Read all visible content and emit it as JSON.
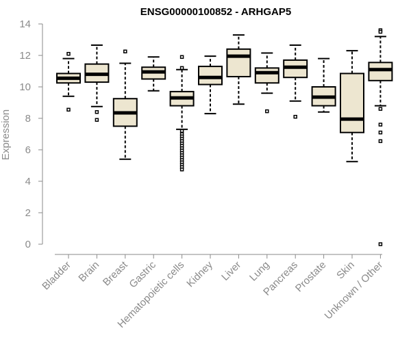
{
  "colors": {
    "box_fill": "#ede6d0",
    "box_stroke": "#000000",
    "axis": "#8a8a8a",
    "title": "#000000"
  },
  "chart_data": {
    "type": "boxplot",
    "title": "ENSG00000100852 - ARHGAP5",
    "xlabel": "",
    "ylabel": "Expression",
    "ylim": [
      0,
      14
    ],
    "yticks": [
      0,
      2,
      4,
      6,
      8,
      10,
      12,
      14
    ],
    "grid": false,
    "categories": [
      "Bladder",
      "Brain",
      "Breast",
      "Gastric",
      "Hematopoietic cells",
      "Kidney",
      "Liver",
      "Lung",
      "Pancreas",
      "Prostate",
      "Skin",
      "Unknown / Other"
    ],
    "boxes": [
      {
        "category": "Bladder",
        "whisker_low": 9.4,
        "q1": 10.25,
        "median": 10.55,
        "q3": 10.85,
        "whisker_high": 11.8,
        "outliers": [
          12.1,
          8.55
        ]
      },
      {
        "category": "Brain",
        "whisker_low": 8.75,
        "q1": 10.3,
        "median": 10.8,
        "q3": 11.45,
        "whisker_high": 12.65,
        "outliers": [
          8.4,
          7.9
        ]
      },
      {
        "category": "Breast",
        "whisker_low": 5.4,
        "q1": 7.5,
        "median": 8.35,
        "q3": 9.25,
        "whisker_high": 11.5,
        "outliers": [
          12.25
        ]
      },
      {
        "category": "Gastric",
        "whisker_low": 9.75,
        "q1": 10.5,
        "median": 10.95,
        "q3": 11.25,
        "whisker_high": 11.9,
        "outliers": []
      },
      {
        "category": "Hematopoietic cells",
        "whisker_low": 7.3,
        "q1": 8.8,
        "median": 9.3,
        "q3": 9.7,
        "whisker_high": 11.1,
        "outliers": [
          11.9,
          11.2,
          7.2,
          7.0,
          6.85,
          6.7,
          6.55,
          6.4,
          6.25,
          6.1,
          5.95,
          5.8,
          5.65,
          5.5,
          5.35,
          5.2,
          5.05,
          4.9,
          4.75
        ]
      },
      {
        "category": "Kidney",
        "whisker_low": 8.3,
        "q1": 10.15,
        "median": 10.6,
        "q3": 11.3,
        "whisker_high": 11.95,
        "outliers": []
      },
      {
        "category": "Liver",
        "whisker_low": 8.9,
        "q1": 10.65,
        "median": 11.95,
        "q3": 12.4,
        "whisker_high": 13.3,
        "outliers": []
      },
      {
        "category": "Lung",
        "whisker_low": 9.6,
        "q1": 10.25,
        "median": 10.9,
        "q3": 11.2,
        "whisker_high": 12.15,
        "outliers": [
          8.45
        ]
      },
      {
        "category": "Pancreas",
        "whisker_low": 9.1,
        "q1": 10.6,
        "median": 11.25,
        "q3": 11.7,
        "whisker_high": 12.65,
        "outliers": [
          8.1
        ]
      },
      {
        "category": "Prostate",
        "whisker_low": 8.4,
        "q1": 8.8,
        "median": 9.35,
        "q3": 10.0,
        "whisker_high": 11.8,
        "outliers": []
      },
      {
        "category": "Skin",
        "whisker_low": 5.25,
        "q1": 7.1,
        "median": 7.95,
        "q3": 10.85,
        "whisker_high": 12.3,
        "outliers": []
      },
      {
        "category": "Unknown / Other",
        "whisker_low": 8.8,
        "q1": 10.4,
        "median": 11.1,
        "q3": 11.55,
        "whisker_high": 13.2,
        "outliers": [
          13.6,
          13.5,
          8.6,
          7.6,
          7.1,
          6.55,
          0.0
        ]
      }
    ]
  }
}
